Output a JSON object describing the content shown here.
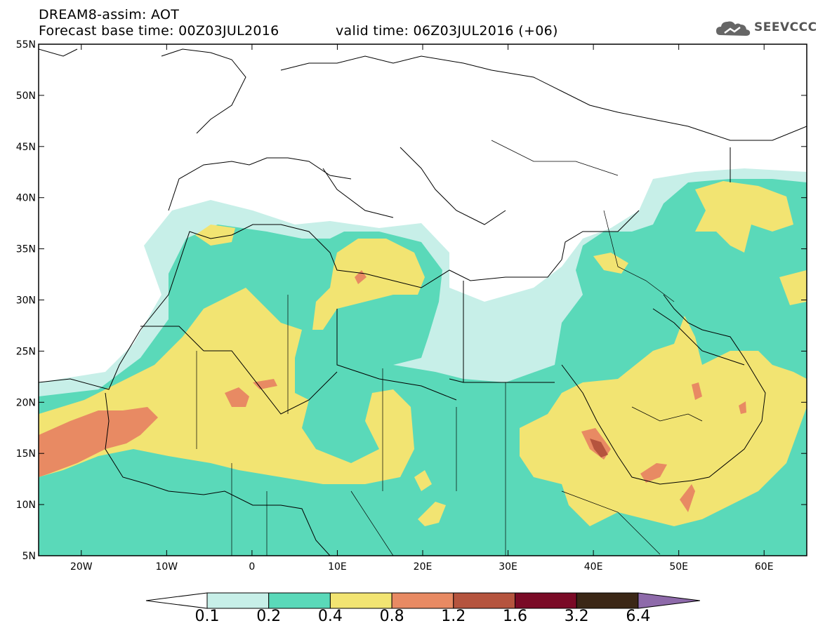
{
  "header": {
    "title": "DREAM8-assim: AOT",
    "base_time": "Forecast base time: 00Z03JUL2016",
    "valid_time": "valid time: 06Z03JUL2016 (+06)"
  },
  "logo": {
    "text": "SEEVCCC",
    "icon": "cloud-icon"
  },
  "map": {
    "lon_range": [
      -25,
      65
    ],
    "lat_range": [
      5,
      55
    ],
    "x_ticks": [
      "20W",
      "10W",
      "0",
      "10E",
      "20E",
      "30E",
      "40E",
      "50E",
      "60E"
    ],
    "y_ticks": [
      "55N",
      "50N",
      "45N",
      "40N",
      "35N",
      "30N",
      "25N",
      "20N",
      "15N",
      "10N",
      "5N"
    ]
  },
  "colorbar": {
    "labels": [
      "0.1",
      "0.2",
      "0.4",
      "0.8",
      "1.2",
      "1.6",
      "3.2",
      "6.4"
    ],
    "colors": [
      "#ffffff",
      "#c7efe8",
      "#5ad9b9",
      "#f2e472",
      "#e88a63",
      "#b5543e",
      "#7a0a26",
      "#3b2716",
      "#8e6aaa"
    ]
  },
  "chart_data": {
    "type": "heatmap",
    "title": "DREAM8-assim: AOT",
    "xlabel": "",
    "ylabel": "",
    "variable": "AOT",
    "xlim": [
      -25,
      65
    ],
    "ylim": [
      5,
      55
    ],
    "levels": [
      0.1,
      0.2,
      0.4,
      0.8,
      1.2,
      1.6,
      3.2,
      6.4
    ]
  }
}
